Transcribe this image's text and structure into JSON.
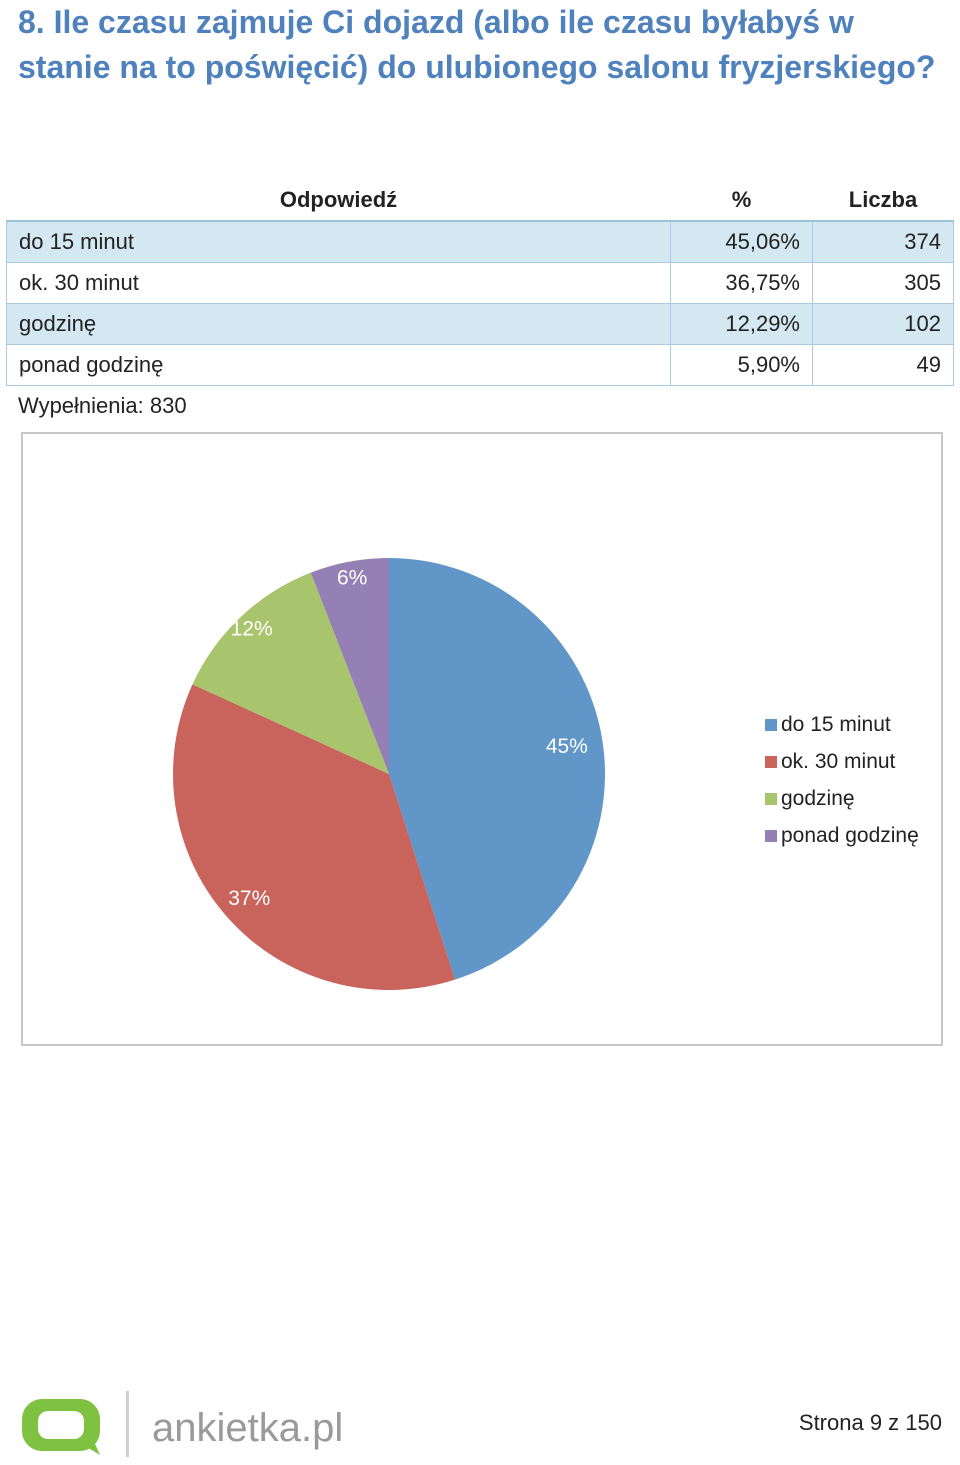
{
  "question": {
    "title": "8. Ile czasu zajmuje Ci dojazd (albo ile czasu byłabyś w stanie na to poświęcić) do ulubionego salonu fryzjerskiego?"
  },
  "table": {
    "headers": {
      "answer": "Odpowiedź",
      "percent": "%",
      "count": "Liczba"
    },
    "rows": [
      {
        "answer": "do 15 minut",
        "percent": "45,06%",
        "count": "374"
      },
      {
        "answer": "ok. 30 minut",
        "percent": "36,75%",
        "count": "305"
      },
      {
        "answer": "godzinę",
        "percent": "12,29%",
        "count": "102"
      },
      {
        "answer": "ponad godzinę",
        "percent": "5,90%",
        "count": "49"
      }
    ],
    "completions": "Wypełnienia: 830"
  },
  "chart_data": {
    "type": "pie",
    "categories": [
      "do 15 minut",
      "ok. 30 minut",
      "godzinę",
      "ponad godzinę"
    ],
    "values": [
      45.06,
      36.75,
      12.29,
      5.9
    ],
    "labels": [
      "45%",
      "37%",
      "12%",
      "6%"
    ],
    "colors": [
      "#6096c8",
      "#c8645c",
      "#a8c46c",
      "#9480b4"
    ],
    "legend_position": "right"
  },
  "footer": {
    "brand": "ankietka.pl",
    "page": "Strona 9 z 150"
  }
}
